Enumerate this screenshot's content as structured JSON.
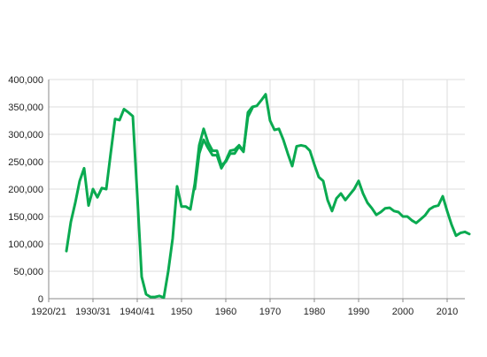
{
  "chart_data": {
    "type": "line",
    "title": "",
    "xlabel": "",
    "ylabel": "",
    "grid": true,
    "colors": {
      "series": "#0aaa50",
      "grid": "#dddddd",
      "axis": "#888888",
      "text": "#222222"
    },
    "x_ticks": [
      "1920/21",
      "1930/31",
      "1940/41",
      "1950",
      "1960",
      "1970",
      "1980",
      "1990",
      "2000",
      "2010"
    ],
    "x_tick_values": [
      1920,
      1930,
      1940,
      1950,
      1960,
      1970,
      1980,
      1990,
      2000,
      2010
    ],
    "xlim": [
      1920,
      2014
    ],
    "y_ticks": [
      "0",
      "50,000",
      "100,000",
      "150,000",
      "200,000",
      "250,000",
      "300,000",
      "350,000",
      "400,000"
    ],
    "y_tick_values": [
      0,
      50000,
      100000,
      150000,
      200000,
      250000,
      300000,
      350000,
      400000
    ],
    "ylim": [
      0,
      400000
    ],
    "series": [
      {
        "values": [
          [
            1924,
            87000
          ],
          [
            1925,
            140000
          ],
          [
            1926,
            175000
          ],
          [
            1927,
            215000
          ],
          [
            1928,
            238000
          ],
          [
            1929,
            170000
          ],
          [
            1930,
            200000
          ],
          [
            1931,
            185000
          ],
          [
            1932,
            202000
          ],
          [
            1933,
            200000
          ],
          [
            1934,
            265000
          ],
          [
            1935,
            328000
          ],
          [
            1936,
            326000
          ],
          [
            1937,
            346000
          ],
          [
            1938,
            340000
          ],
          [
            1939,
            333000
          ],
          [
            1940,
            190000
          ],
          [
            1941,
            40000
          ],
          [
            1942,
            8000
          ],
          [
            1943,
            3000
          ],
          [
            1944,
            3000
          ],
          [
            1945,
            5000
          ],
          [
            1946,
            2000
          ],
          [
            1947,
            50000
          ],
          [
            1948,
            110000
          ],
          [
            1949,
            205000
          ],
          [
            1950,
            168000
          ],
          [
            1951,
            168000
          ],
          [
            1952,
            163000
          ],
          [
            1953,
            210000
          ],
          [
            1954,
            280000
          ],
          [
            1955,
            310000
          ],
          [
            1956,
            285000
          ],
          [
            1957,
            270000
          ],
          [
            1958,
            270000
          ],
          [
            1959,
            243000
          ],
          [
            1960,
            250000
          ],
          [
            1961,
            265000
          ],
          [
            1962,
            265000
          ],
          [
            1963,
            278000
          ],
          [
            1964,
            268000
          ],
          [
            1965,
            340000
          ],
          [
            1966,
            350000
          ],
          [
            1967,
            352000
          ],
          [
            1968,
            362000
          ],
          [
            1969,
            373000
          ],
          [
            1970,
            325000
          ],
          [
            1971,
            308000
          ],
          [
            1972,
            310000
          ],
          [
            1973,
            290000
          ],
          [
            1974,
            265000
          ],
          [
            1975,
            242000
          ],
          [
            1976,
            278000
          ],
          [
            1977,
            280000
          ],
          [
            1978,
            278000
          ],
          [
            1979,
            270000
          ],
          [
            1980,
            245000
          ],
          [
            1981,
            222000
          ],
          [
            1982,
            215000
          ],
          [
            1983,
            180000
          ],
          [
            1984,
            160000
          ],
          [
            1985,
            183000
          ],
          [
            1986,
            192000
          ],
          [
            1987,
            180000
          ],
          [
            1988,
            190000
          ],
          [
            1989,
            200000
          ],
          [
            1990,
            215000
          ],
          [
            1991,
            192000
          ],
          [
            1992,
            175000
          ],
          [
            1993,
            165000
          ],
          [
            1994,
            153000
          ],
          [
            1995,
            158000
          ],
          [
            1996,
            165000
          ],
          [
            1997,
            166000
          ],
          [
            1998,
            160000
          ],
          [
            1999,
            158000
          ],
          [
            2000,
            150000
          ],
          [
            2001,
            150000
          ],
          [
            2002,
            143000
          ],
          [
            2003,
            138000
          ],
          [
            2004,
            145000
          ],
          [
            2005,
            152000
          ],
          [
            2006,
            163000
          ],
          [
            2007,
            168000
          ],
          [
            2008,
            170000
          ],
          [
            2009,
            187000
          ],
          [
            2010,
            160000
          ],
          [
            2011,
            135000
          ],
          [
            2012,
            115000
          ],
          [
            2013,
            120000
          ],
          [
            2014,
            122000
          ],
          [
            2015,
            118000
          ]
        ]
      },
      {
        "values": [
          [
            1953,
            200000
          ],
          [
            1954,
            265000
          ],
          [
            1955,
            290000
          ],
          [
            1956,
            275000
          ],
          [
            1957,
            262000
          ],
          [
            1958,
            262000
          ],
          [
            1959,
            238000
          ],
          [
            1960,
            252000
          ],
          [
            1961,
            270000
          ],
          [
            1962,
            272000
          ],
          [
            1963,
            280000
          ],
          [
            1964,
            270000
          ],
          [
            1965,
            332000
          ],
          [
            1966,
            348000
          ]
        ]
      }
    ]
  }
}
